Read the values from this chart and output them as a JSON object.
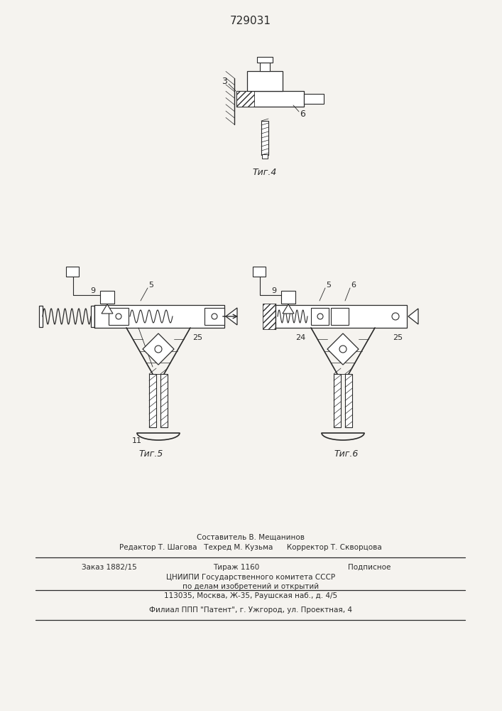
{
  "patent_number": "729031",
  "background_color": "#f5f3ef",
  "line_color": "#2a2a2a",
  "fig4_label": "Τиг.4",
  "fig5_label": "Τиг.5",
  "fig6_label": "Τиг.6",
  "footer_composer": "Составитель В. Мещанинов",
  "footer_editor": "Редактор Т. Шагова",
  "footer_techred": "Техред М. Кузьма",
  "footer_corrector": "Корректор Т. Скворцова",
  "footer_order": "Заказ 1882/15",
  "footer_tirage": "Тираж 1160",
  "footer_podp": "Подписное",
  "footer_org1": "ЦНИИПИ Государственного комитета СССР",
  "footer_org2": "по делам изобретений и открытий",
  "footer_addr": "113035, Москва, Ж-35, Раушская наб., д. 4/5",
  "footer_filial": "Филиал ППП \"Патент\", г. Ужгород, ул. Проектная, 4"
}
